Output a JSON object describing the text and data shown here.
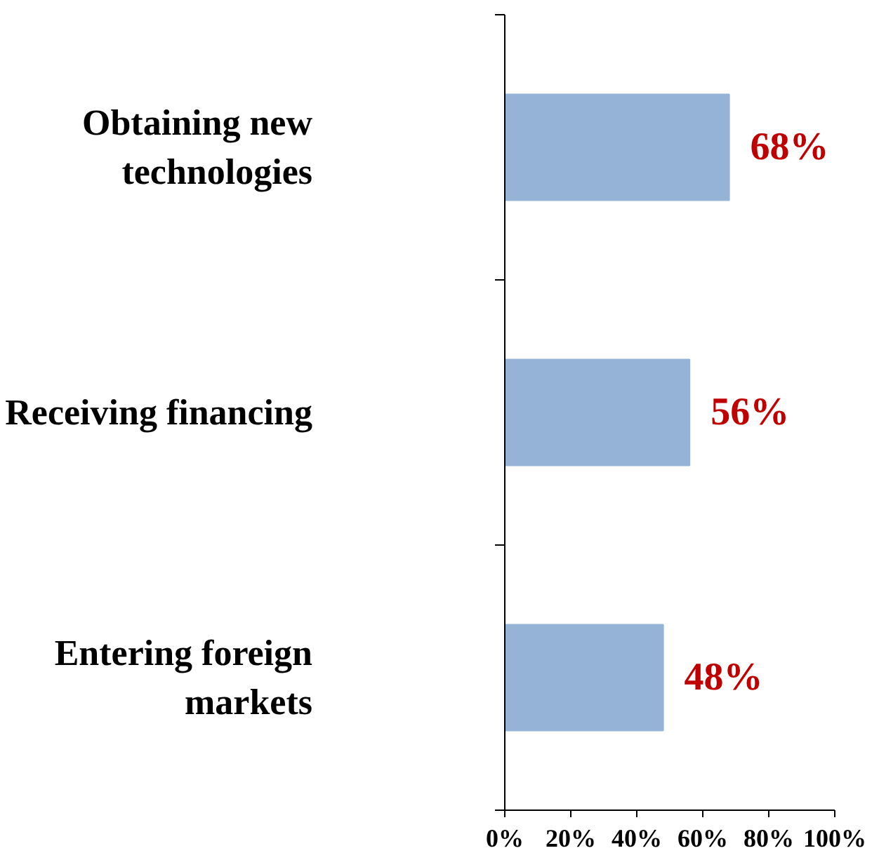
{
  "chart_data": {
    "type": "bar",
    "orientation": "horizontal",
    "categories": [
      "Obtaining new technologies",
      "Receiving financing",
      "Entering foreign markets"
    ],
    "values": [
      68,
      56,
      48
    ],
    "color": "#95b3d7",
    "value_labels": [
      "68%",
      "56%",
      "48%"
    ],
    "xlim": [
      0,
      100
    ],
    "xticks": [
      {
        "value": 0,
        "label": "0%"
      },
      {
        "value": 20,
        "label": "20%"
      },
      {
        "value": 40,
        "label": "40%"
      },
      {
        "value": 60,
        "label": "60%"
      },
      {
        "value": 80,
        "label": "80%"
      },
      {
        "value": 100,
        "label": "100%"
      }
    ],
    "grid": false
  }
}
